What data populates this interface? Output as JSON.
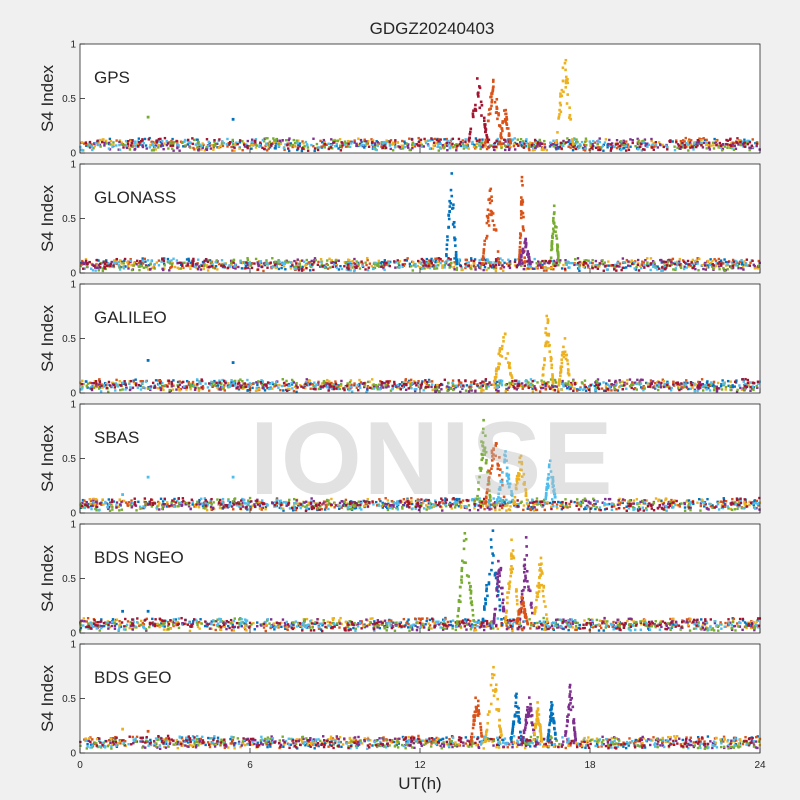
{
  "figure": {
    "title": "GDGZ20240403",
    "watermark": "IONISE"
  },
  "chart_data": {
    "type": "scatter",
    "title": "GDGZ20240403",
    "xlabel": "UT(h)",
    "ylabel": "S4 Index",
    "xlim": [
      0,
      24
    ],
    "ylim": [
      0,
      1
    ],
    "xticks": [
      0,
      6,
      12,
      18,
      24
    ],
    "yticks": [
      0,
      0.5,
      1
    ],
    "grid": false,
    "colors": [
      "#0072BD",
      "#D95319",
      "#EDB120",
      "#7E2F8E",
      "#77AC30",
      "#4DBEEE",
      "#A2142F"
    ],
    "panels": [
      {
        "label": "GPS",
        "baseline": 0.08,
        "active": [
          [
            0,
            24
          ]
        ],
        "bursts": [
          {
            "t0": 13.7,
            "t1": 14.4,
            "peak": 0.75,
            "color": "#A2142F"
          },
          {
            "t0": 14.3,
            "t1": 14.9,
            "peak": 0.8,
            "color": "#D95319"
          },
          {
            "t0": 14.8,
            "t1": 15.2,
            "peak": 0.45,
            "color": "#D95319"
          },
          {
            "t0": 16.8,
            "t1": 17.4,
            "peak": 1.0,
            "color": "#EDB120"
          }
        ],
        "spikes": [
          {
            "t": 2.4,
            "v": 0.33,
            "color": "#77AC30"
          },
          {
            "t": 5.4,
            "v": 0.31,
            "color": "#0072BD"
          }
        ]
      },
      {
        "label": "GLONASS",
        "baseline": 0.08,
        "active": [
          [
            0,
            24
          ]
        ],
        "bursts": [
          {
            "t0": 12.9,
            "t1": 13.3,
            "peak": 1.0,
            "color": "#0072BD"
          },
          {
            "t0": 14.2,
            "t1": 14.8,
            "peak": 0.9,
            "color": "#D95319"
          },
          {
            "t0": 15.5,
            "t1": 15.7,
            "peak": 0.95,
            "color": "#D95319"
          },
          {
            "t0": 15.5,
            "t1": 15.9,
            "peak": 0.35,
            "color": "#7E2F8E"
          },
          {
            "t0": 16.6,
            "t1": 16.9,
            "peak": 0.7,
            "color": "#77AC30"
          }
        ],
        "spikes": []
      },
      {
        "label": "GALILEO",
        "baseline": 0.07,
        "active": [
          [
            0,
            24
          ]
        ],
        "bursts": [
          {
            "t0": 14.6,
            "t1": 15.3,
            "peak": 0.65,
            "color": "#EDB120"
          },
          {
            "t0": 16.3,
            "t1": 16.7,
            "peak": 0.85,
            "color": "#EDB120"
          },
          {
            "t0": 16.9,
            "t1": 17.3,
            "peak": 0.6,
            "color": "#EDB120"
          }
        ],
        "spikes": [
          {
            "t": 2.4,
            "v": 0.3,
            "color": "#0072BD"
          },
          {
            "t": 5.4,
            "v": 0.28,
            "color": "#0072BD"
          }
        ]
      },
      {
        "label": "SBAS",
        "baseline": 0.08,
        "active": [
          [
            0,
            24
          ]
        ],
        "bursts": [
          {
            "t0": 14.0,
            "t1": 14.5,
            "peak": 0.95,
            "color": "#77AC30"
          },
          {
            "t0": 14.3,
            "t1": 15.0,
            "peak": 0.85,
            "color": "#D95319"
          },
          {
            "t0": 14.7,
            "t1": 15.3,
            "peak": 0.6,
            "color": "#4DBEEE"
          },
          {
            "t0": 15.3,
            "t1": 15.8,
            "peak": 0.6,
            "color": "#EDB120"
          },
          {
            "t0": 16.4,
            "t1": 16.8,
            "peak": 0.55,
            "color": "#4DBEEE"
          }
        ],
        "spikes": [
          {
            "t": 1.5,
            "v": 0.17,
            "color": "#4DBEEE"
          },
          {
            "t": 2.4,
            "v": 0.33,
            "color": "#4DBEEE"
          },
          {
            "t": 5.4,
            "v": 0.33,
            "color": "#4DBEEE"
          }
        ]
      },
      {
        "label": "BDS NGEO",
        "baseline": 0.08,
        "active": [
          [
            0,
            24
          ]
        ],
        "bursts": [
          {
            "t0": 13.3,
            "t1": 13.9,
            "peak": 1.0,
            "color": "#77AC30"
          },
          {
            "t0": 14.2,
            "t1": 14.9,
            "peak": 1.0,
            "color": "#0072BD"
          },
          {
            "t0": 14.6,
            "t1": 15.0,
            "peak": 0.8,
            "color": "#7E2F8E"
          },
          {
            "t0": 15.0,
            "t1": 15.5,
            "peak": 0.95,
            "color": "#EDB120"
          },
          {
            "t0": 15.5,
            "t1": 16.0,
            "peak": 0.9,
            "color": "#7E2F8E"
          },
          {
            "t0": 15.4,
            "t1": 15.8,
            "peak": 0.35,
            "color": "#D95319"
          },
          {
            "t0": 16.0,
            "t1": 16.5,
            "peak": 0.75,
            "color": "#EDB120"
          }
        ],
        "spikes": [
          {
            "t": 1.5,
            "v": 0.2,
            "color": "#0072BD"
          },
          {
            "t": 2.4,
            "v": 0.2,
            "color": "#0072BD"
          }
        ]
      },
      {
        "label": "BDS GEO",
        "baseline": 0.1,
        "active": [
          [
            0,
            24
          ]
        ],
        "bursts": [
          {
            "t0": 13.8,
            "t1": 14.2,
            "peak": 0.65,
            "color": "#D95319"
          },
          {
            "t0": 14.3,
            "t1": 14.9,
            "peak": 0.9,
            "color": "#EDB120"
          },
          {
            "t0": 15.2,
            "t1": 15.6,
            "peak": 0.6,
            "color": "#0072BD"
          },
          {
            "t0": 15.6,
            "t1": 16.1,
            "peak": 0.55,
            "color": "#7E2F8E"
          },
          {
            "t0": 16.0,
            "t1": 16.3,
            "peak": 0.5,
            "color": "#EDB120"
          },
          {
            "t0": 16.5,
            "t1": 16.8,
            "peak": 0.55,
            "color": "#0072BD"
          },
          {
            "t0": 17.1,
            "t1": 17.5,
            "peak": 0.7,
            "color": "#7E2F8E"
          }
        ],
        "spikes": [
          {
            "t": 1.5,
            "v": 0.22,
            "color": "#EDB120"
          },
          {
            "t": 2.4,
            "v": 0.2,
            "color": "#D95319"
          }
        ]
      }
    ]
  }
}
